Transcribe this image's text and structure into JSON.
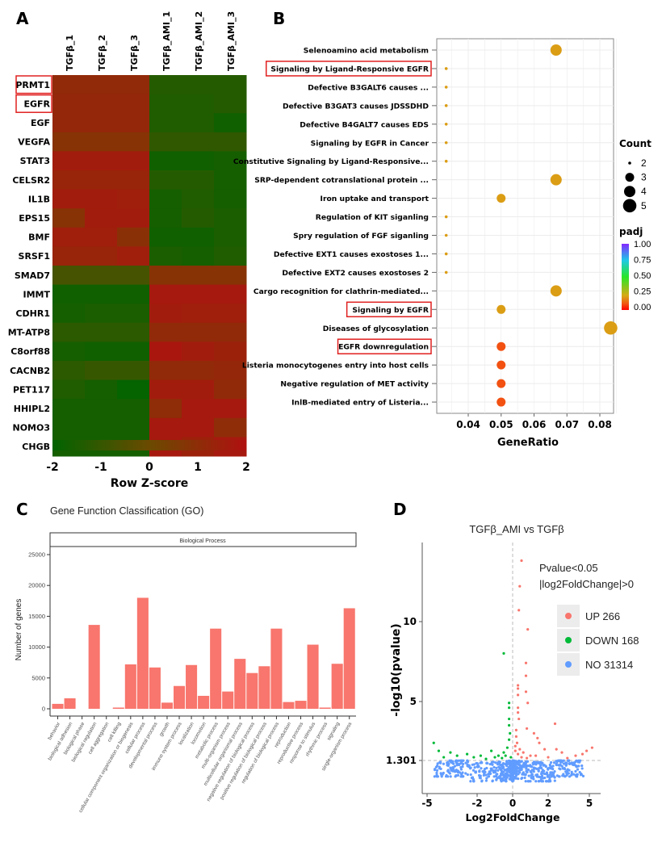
{
  "chart_data": [
    {
      "panel": "A",
      "type": "heatmap",
      "columns": [
        "TGFβ_1",
        "TGFβ_2",
        "TGFβ_3",
        "TGFβ_AMI_1",
        "TGFβ_AMI_2",
        "TGFβ_AMI_3"
      ],
      "rows": [
        "PRMT1",
        "EGFR",
        "EGF",
        "VEGFA",
        "STAT3",
        "CELSR2",
        "IL1B",
        "EPS15",
        "BMF",
        "SRSF1",
        "SMAD7",
        "IMMT",
        "CDHR1",
        "MT-ATP8",
        "C8orf88",
        "CACNB2",
        "PET117",
        "HHIPL2",
        "NOMO3",
        "CHGB"
      ],
      "highlighted_rows": [
        "PRMT1",
        "EGFR"
      ],
      "values": [
        [
          1.1,
          1.1,
          1.1,
          -1.3,
          -1.3,
          -1.3
        ],
        [
          1.2,
          1.2,
          1.2,
          -1.4,
          -1.4,
          -1.3
        ],
        [
          1.2,
          1.2,
          1.2,
          -1.4,
          -1.4,
          -1.7
        ],
        [
          0.8,
          0.8,
          0.8,
          -1.1,
          -1.1,
          -1.1
        ],
        [
          1.6,
          1.6,
          1.6,
          -1.7,
          -1.7,
          -1.6
        ],
        [
          1.3,
          1.3,
          1.3,
          -1.3,
          -1.3,
          -1.6
        ],
        [
          1.6,
          1.6,
          1.5,
          -1.6,
          -1.4,
          -1.6
        ],
        [
          0.8,
          1.6,
          1.6,
          -1.6,
          -1.3,
          -1.5
        ],
        [
          1.5,
          1.5,
          0.9,
          -1.7,
          -1.7,
          -1.5
        ],
        [
          1.3,
          1.3,
          1.5,
          -1.5,
          -1.6,
          -1.4
        ],
        [
          -0.7,
          -0.7,
          -0.7,
          0.8,
          0.8,
          0.8
        ],
        [
          -1.7,
          -1.7,
          -1.7,
          1.7,
          1.7,
          1.7
        ],
        [
          -1.6,
          -1.5,
          -1.5,
          1.6,
          1.5,
          1.5
        ],
        [
          -1.2,
          -1.2,
          -1.2,
          1.1,
          1.1,
          1.1
        ],
        [
          -1.6,
          -1.7,
          -1.7,
          1.8,
          1.6,
          1.4
        ],
        [
          -1.2,
          -1.0,
          -1.0,
          1.1,
          1.1,
          1.2
        ],
        [
          -1.4,
          -1.6,
          -1.9,
          1.6,
          1.6,
          1.1
        ],
        [
          -1.6,
          -1.6,
          -1.6,
          1.0,
          1.7,
          1.7
        ],
        [
          -1.6,
          -1.6,
          -1.6,
          1.7,
          1.7,
          1.0
        ],
        [
          -1.6,
          -1.6,
          -1.6,
          1.7,
          1.4,
          1.7
        ]
      ],
      "colorbar": {
        "label": "Row Z-score",
        "ticks": [
          "-2",
          "-1",
          "0",
          "1",
          "2"
        ],
        "range": [
          -2,
          2
        ],
        "low_color": "#006400",
        "mid_color": "#6b4a00",
        "high_color": "#b01010"
      }
    },
    {
      "panel": "B",
      "type": "scatter",
      "xlabel": "GeneRatio",
      "xticks": [
        "0.04",
        "0.05",
        "0.06",
        "0.07",
        "0.08"
      ],
      "xlim": [
        0.0305,
        0.0855
      ],
      "grid": true,
      "terms": [
        {
          "label": "Selenoamino acid metabolism",
          "ratio": 0.0667,
          "count": 4,
          "padj": 0.2,
          "highlight": false
        },
        {
          "label": "Signaling by Ligand-Responsive EGFR",
          "ratio": 0.0333,
          "count": 2,
          "padj": 0.2,
          "highlight": true
        },
        {
          "label": "Defective B3GALT6 causes ...",
          "ratio": 0.0333,
          "count": 2,
          "padj": 0.2,
          "highlight": false
        },
        {
          "label": "Defective B3GAT3 causes JDSSDHD",
          "ratio": 0.0333,
          "count": 2,
          "padj": 0.2,
          "highlight": false
        },
        {
          "label": "Defective B4GALT7 causes EDS",
          "ratio": 0.0333,
          "count": 2,
          "padj": 0.2,
          "highlight": false
        },
        {
          "label": "Signaling by EGFR in Cancer",
          "ratio": 0.0333,
          "count": 2,
          "padj": 0.2,
          "highlight": false
        },
        {
          "label": "Constitutive Signaling by Ligand-Responsive...",
          "ratio": 0.0333,
          "count": 2,
          "padj": 0.2,
          "highlight": false
        },
        {
          "label": "SRP-dependent cotranslational protein ...",
          "ratio": 0.0667,
          "count": 4,
          "padj": 0.2,
          "highlight": false
        },
        {
          "label": "Iron uptake and transport",
          "ratio": 0.05,
          "count": 3,
          "padj": 0.2,
          "highlight": false
        },
        {
          "label": "Regulation of KIT siganling",
          "ratio": 0.0333,
          "count": 2,
          "padj": 0.2,
          "highlight": false
        },
        {
          "label": "Spry regulation of FGF siganling",
          "ratio": 0.0333,
          "count": 2,
          "padj": 0.2,
          "highlight": false
        },
        {
          "label": "Defective EXT1 causes exostoses 1...",
          "ratio": 0.0333,
          "count": 2,
          "padj": 0.2,
          "highlight": false
        },
        {
          "label": "Defective EXT2 causes exostoses 2",
          "ratio": 0.0333,
          "count": 2,
          "padj": 0.2,
          "highlight": false
        },
        {
          "label": "Cargo recognition for clathrin-mediated...",
          "ratio": 0.0667,
          "count": 4,
          "padj": 0.2,
          "highlight": false
        },
        {
          "label": "Signaling by EGFR",
          "ratio": 0.05,
          "count": 3,
          "padj": 0.2,
          "highlight": true
        },
        {
          "label": "Diseases of glycosylation",
          "ratio": 0.0833,
          "count": 5,
          "padj": 0.2,
          "highlight": false
        },
        {
          "label": "EGFR downregulation",
          "ratio": 0.05,
          "count": 3,
          "padj": 0.09,
          "highlight": true
        },
        {
          "label": "Listeria monocytogenes entry into host cells",
          "ratio": 0.05,
          "count": 3,
          "padj": 0.09,
          "highlight": false
        },
        {
          "label": "Negative regulation of MET activity",
          "ratio": 0.05,
          "count": 3,
          "padj": 0.09,
          "highlight": false
        },
        {
          "label": "InlB-mediated entry of Listeria...",
          "ratio": 0.05,
          "count": 3,
          "padj": 0.09,
          "highlight": false
        }
      ],
      "legend_count": {
        "title": "Count",
        "values": [
          "2",
          "3",
          "4",
          "5"
        ]
      },
      "legend_padj": {
        "title": "padj",
        "ticks": [
          "1.00",
          "0.75",
          "0.50",
          "0.25",
          "0.00"
        ],
        "range": [
          0,
          1
        ]
      }
    },
    {
      "panel": "C",
      "type": "bar",
      "title": "Gene Function Classification (GO)",
      "facet": "Biological Process",
      "ylabel": "Number of genes",
      "yticks": [
        "0",
        "5000",
        "10000",
        "15000",
        "20000",
        "25000"
      ],
      "ylim": [
        0,
        25000
      ],
      "bar_color": "#f8766d",
      "categories": [
        "behavior",
        "biological adhesion",
        "biological phase",
        "biological regulation",
        "cell aggregation",
        "cell killing",
        "cellular component organization or biogenesis",
        "cellular process",
        "developmental process",
        "growth",
        "immune system process",
        "localization",
        "locomotion",
        "metabolic process",
        "multi-organism process",
        "multicellular organismal process",
        "negative regulation of biological process",
        "positive regulation of biological process",
        "regulation of biological process",
        "reproduction",
        "reproductive process",
        "response to stimulus",
        "rhythmic process",
        "signaling",
        "single-organism process"
      ],
      "values": [
        800,
        1700,
        0,
        13600,
        0,
        200,
        7200,
        18000,
        6700,
        1000,
        3700,
        7100,
        2100,
        13000,
        2800,
        8100,
        5800,
        6900,
        13000,
        1100,
        1300,
        10400,
        200,
        7300,
        16300
      ]
    },
    {
      "panel": "D",
      "type": "scatter",
      "title": "TGFβ_AMI vs TGFβ",
      "xlabel": "Log2FoldChange",
      "ylabel": "-log10(pvalue)",
      "xticks": [
        "-5",
        "-2",
        "0",
        "2",
        "5"
      ],
      "yticks": [
        "1.301",
        "5",
        "10"
      ],
      "threshold_text": [
        "Pvalue<0.05",
        "|log2FoldChange|>0"
      ],
      "legend": [
        {
          "label": "UP 266",
          "color": "#f8766d"
        },
        {
          "label": "DOWN 168",
          "color": "#00ba38"
        },
        {
          "label": "NO 31314",
          "color": "#619cff"
        }
      ],
      "up_points": [
        [
          0.5,
          13.8
        ],
        [
          0.4,
          12.2
        ],
        [
          0.35,
          10.7
        ],
        [
          0.85,
          9.5
        ],
        [
          0.75,
          7.4
        ],
        [
          0.75,
          6.6
        ],
        [
          0.3,
          6.0
        ],
        [
          0.3,
          5.8
        ],
        [
          0.3,
          5.4
        ],
        [
          0.75,
          5.6
        ],
        [
          0.85,
          4.9
        ],
        [
          0.3,
          4.6
        ],
        [
          0.3,
          4.3
        ],
        [
          0.35,
          3.9
        ],
        [
          2.5,
          3.6
        ],
        [
          0.8,
          3.3
        ],
        [
          1.2,
          3.0
        ],
        [
          1.4,
          2.7
        ],
        [
          1.5,
          2.4
        ],
        [
          1.8,
          2.0
        ],
        [
          2.6,
          2.0
        ],
        [
          3.0,
          1.8
        ],
        [
          4.0,
          1.6
        ],
        [
          4.5,
          1.7
        ],
        [
          5.2,
          2.1
        ],
        [
          0.2,
          3.2
        ],
        [
          0.2,
          2.8
        ],
        [
          0.25,
          2.4
        ],
        [
          0.4,
          2.0
        ],
        [
          0.6,
          1.8
        ],
        [
          1.0,
          1.6
        ],
        [
          0.5,
          1.5
        ],
        [
          0.15,
          2.2
        ],
        [
          0.15,
          1.9
        ],
        [
          0.3,
          1.7
        ],
        [
          0.8,
          1.45
        ],
        [
          1.3,
          1.6
        ],
        [
          2.0,
          1.5
        ],
        [
          3.4,
          1.45
        ],
        [
          4.8,
          1.9
        ]
      ],
      "down_points": [
        [
          -0.5,
          8.0
        ],
        [
          -0.2,
          4.9
        ],
        [
          -0.2,
          4.6
        ],
        [
          -0.2,
          3.9
        ],
        [
          -0.2,
          3.5
        ],
        [
          -4.6,
          2.4
        ],
        [
          -4.3,
          1.9
        ],
        [
          -3.6,
          1.8
        ],
        [
          -3.2,
          1.6
        ],
        [
          -2.6,
          1.7
        ],
        [
          -1.8,
          1.6
        ],
        [
          -1.2,
          1.9
        ],
        [
          -0.8,
          1.6
        ],
        [
          -0.5,
          1.8
        ],
        [
          -0.3,
          2.1
        ],
        [
          -0.2,
          2.6
        ],
        [
          -0.1,
          1.5
        ],
        [
          -1.5,
          1.4
        ],
        [
          -4.0,
          1.5
        ],
        [
          -0.4,
          1.6
        ],
        [
          -0.15,
          3.0
        ],
        [
          -0.6,
          1.45
        ],
        [
          -2.2,
          1.5
        ],
        [
          -1.0,
          1.5
        ]
      ]
    }
  ],
  "panel_labels": [
    "A",
    "B",
    "C",
    "D"
  ]
}
